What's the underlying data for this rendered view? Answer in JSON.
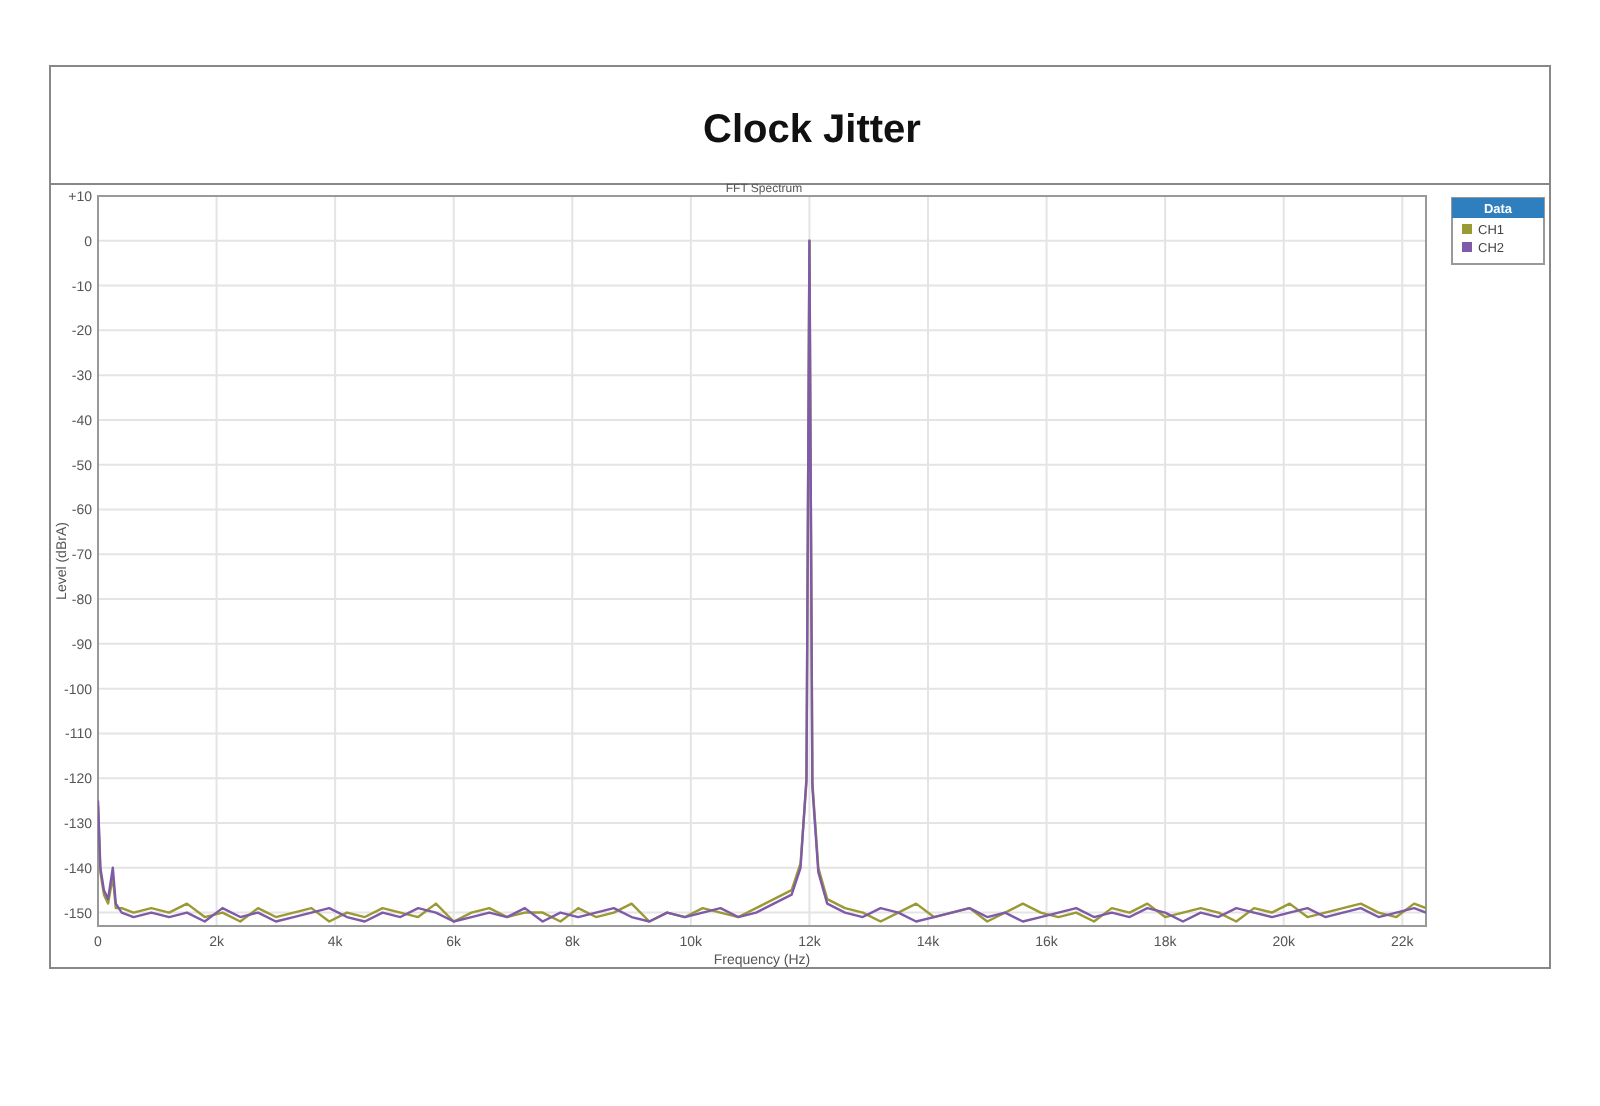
{
  "chart_data": {
    "type": "line",
    "title": "Clock Jitter",
    "subtitle": "FFT Spectrum",
    "xlabel": "Frequency (Hz)",
    "ylabel": "Level (dBrA)",
    "legend_title": "Data",
    "legend": "right",
    "grid": true,
    "marker": "none",
    "line_style": "solid",
    "xlim": [
      0,
      22400
    ],
    "ylim": [
      -153,
      10
    ],
    "xticks": [
      0,
      {
        "value": 2000,
        "label": "2k"
      },
      {
        "value": 4000,
        "label": "4k"
      },
      {
        "value": 6000,
        "label": "6k"
      },
      {
        "value": 8000,
        "label": "8k"
      },
      {
        "value": 10000,
        "label": "10k"
      },
      {
        "value": 12000,
        "label": "12k"
      },
      {
        "value": 14000,
        "label": "14k"
      },
      {
        "value": 16000,
        "label": "16k"
      },
      {
        "value": 18000,
        "label": "18k"
      },
      {
        "value": 20000,
        "label": "20k"
      },
      {
        "value": 22000,
        "label": "22k"
      }
    ],
    "yticks": [
      {
        "value": 10,
        "label": "+10"
      },
      0,
      -10,
      -20,
      -30,
      -40,
      -50,
      -60,
      -70,
      -80,
      -90,
      -100,
      -110,
      -120,
      -130,
      -140,
      -150
    ],
    "x": [
      0,
      40,
      100,
      170,
      250,
      300,
      400,
      600,
      900,
      1200,
      1500,
      1800,
      2100,
      2400,
      2700,
      3000,
      3300,
      3600,
      3900,
      4200,
      4500,
      4800,
      5100,
      5400,
      5700,
      6000,
      6300,
      6600,
      6900,
      7200,
      7500,
      7800,
      8100,
      8400,
      8700,
      9000,
      9300,
      9600,
      9900,
      10200,
      10500,
      10800,
      11100,
      11400,
      11700,
      11850,
      11950,
      12000,
      12050,
      12150,
      12300,
      12600,
      12900,
      13200,
      13500,
      13800,
      14100,
      14400,
      14700,
      15000,
      15300,
      15600,
      15900,
      16200,
      16500,
      16800,
      17100,
      17400,
      17700,
      18000,
      18300,
      18600,
      18900,
      19200,
      19500,
      19800,
      20100,
      20400,
      20700,
      21000,
      21300,
      21600,
      21900,
      22200,
      22400
    ],
    "series": [
      {
        "name": "CH1",
        "color": "#9a9a34",
        "values": [
          -126,
          -141,
          -146,
          -148,
          -142,
          -149,
          -149,
          -150,
          -149,
          -150,
          -148,
          -151,
          -150,
          -152,
          -149,
          -151,
          -150,
          -149,
          -152,
          -150,
          -151,
          -149,
          -150,
          -151,
          -148,
          -152,
          -150,
          -149,
          -151,
          -150,
          -150,
          -152,
          -149,
          -151,
          -150,
          -148,
          -152,
          -150,
          -151,
          -149,
          -150,
          -151,
          -149,
          -147,
          -145,
          -139,
          -121,
          0,
          -121,
          -140,
          -147,
          -149,
          -150,
          -152,
          -150,
          -148,
          -151,
          -150,
          -149,
          -152,
          -150,
          -148,
          -150,
          -151,
          -150,
          -152,
          -149,
          -150,
          -148,
          -151,
          -150,
          -149,
          -150,
          -152,
          -149,
          -150,
          -148,
          -151,
          -150,
          -149,
          -148,
          -150,
          -151,
          -148,
          -149
        ]
      },
      {
        "name": "CH2",
        "color": "#7e5aa8",
        "values": [
          -125,
          -140,
          -145,
          -147,
          -140,
          -148,
          -150,
          -151,
          -150,
          -151,
          -150,
          -152,
          -149,
          -151,
          -150,
          -152,
          -151,
          -150,
          -149,
          -151,
          -152,
          -150,
          -151,
          -149,
          -150,
          -152,
          -151,
          -150,
          -151,
          -149,
          -152,
          -150,
          -151,
          -150,
          -149,
          -151,
          -152,
          -150,
          -151,
          -150,
          -149,
          -151,
          -150,
          -148,
          -146,
          -140,
          -120,
          0,
          -122,
          -141,
          -148,
          -150,
          -151,
          -149,
          -150,
          -152,
          -151,
          -150,
          -149,
          -151,
          -150,
          -152,
          -151,
          -150,
          -149,
          -151,
          -150,
          -151,
          -149,
          -150,
          -152,
          -150,
          -151,
          -149,
          -150,
          -151,
          -150,
          -149,
          -151,
          -150,
          -149,
          -151,
          -150,
          -149,
          -150
        ]
      }
    ]
  }
}
